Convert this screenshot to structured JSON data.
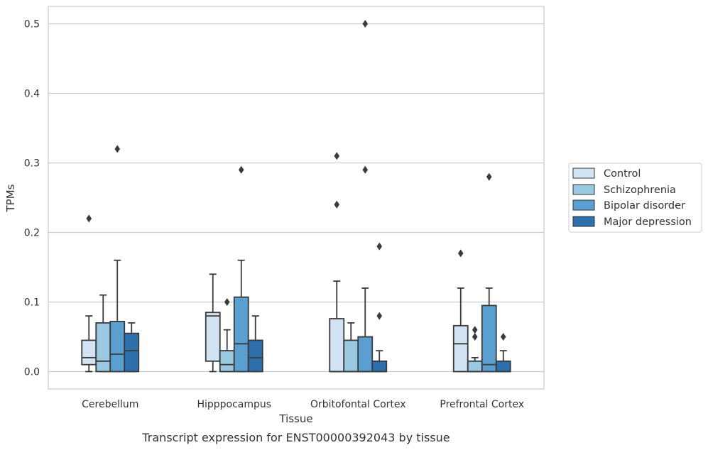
{
  "chart_data": {
    "type": "box",
    "caption": "Transcript expression for ENST00000392043 by tissue",
    "xlabel": "Tissue",
    "ylabel": "TPMs",
    "ylim": [
      -0.025,
      0.525
    ],
    "yticks": [
      0.0,
      0.1,
      0.2,
      0.3,
      0.4,
      0.5
    ],
    "ytick_labels": [
      "0.0",
      "0.1",
      "0.2",
      "0.3",
      "0.4",
      "0.5"
    ],
    "grid": "horizontal",
    "legend_position": "right",
    "categories": [
      "Cerebellum",
      "Hipppocampus",
      "Orbitofontal Cortex",
      "Prefrontal Cortex"
    ],
    "series": [
      {
        "name": "Control",
        "color": "#d2e3f3",
        "boxes": [
          {
            "whislo": 0.0,
            "q1": 0.01,
            "med": 0.02,
            "q3": 0.045,
            "whishi": 0.08,
            "fliers": [
              0.22
            ]
          },
          {
            "whislo": 0.0,
            "q1": 0.015,
            "med": 0.08,
            "q3": 0.085,
            "whishi": 0.14,
            "fliers": []
          },
          {
            "whislo": 0.0,
            "q1": 0.0,
            "med": 0.0,
            "q3": 0.076,
            "whishi": 0.13,
            "fliers": [
              0.24,
              0.31
            ]
          },
          {
            "whislo": 0.0,
            "q1": 0.0,
            "med": 0.04,
            "q3": 0.066,
            "whishi": 0.12,
            "fliers": [
              0.17
            ]
          }
        ]
      },
      {
        "name": "Schizophrenia",
        "color": "#9ac8e0",
        "boxes": [
          {
            "whislo": 0.0,
            "q1": 0.0,
            "med": 0.015,
            "q3": 0.07,
            "whishi": 0.11,
            "fliers": []
          },
          {
            "whislo": 0.0,
            "q1": 0.0,
            "med": 0.01,
            "q3": 0.03,
            "whishi": 0.06,
            "fliers": [
              0.1
            ]
          },
          {
            "whislo": 0.0,
            "q1": 0.0,
            "med": 0.0,
            "q3": 0.045,
            "whishi": 0.07,
            "fliers": []
          },
          {
            "whislo": 0.0,
            "q1": 0.0,
            "med": 0.0,
            "q3": 0.015,
            "whishi": 0.02,
            "fliers": [
              0.05,
              0.06
            ]
          }
        ]
      },
      {
        "name": "Bipolar disorder",
        "color": "#5a9fcf",
        "boxes": [
          {
            "whislo": 0.0,
            "q1": 0.0,
            "med": 0.025,
            "q3": 0.072,
            "whishi": 0.16,
            "fliers": [
              0.32
            ]
          },
          {
            "whislo": 0.0,
            "q1": 0.0,
            "med": 0.04,
            "q3": 0.107,
            "whishi": 0.16,
            "fliers": [
              0.29
            ]
          },
          {
            "whislo": 0.0,
            "q1": 0.0,
            "med": 0.0,
            "q3": 0.05,
            "whishi": 0.12,
            "fliers": [
              0.29,
              0.5
            ]
          },
          {
            "whislo": 0.0,
            "q1": 0.0,
            "med": 0.01,
            "q3": 0.095,
            "whishi": 0.12,
            "fliers": [
              0.28
            ]
          }
        ]
      },
      {
        "name": "Major depression",
        "color": "#2d6fad",
        "boxes": [
          {
            "whislo": 0.0,
            "q1": 0.0,
            "med": 0.03,
            "q3": 0.055,
            "whishi": 0.07,
            "fliers": []
          },
          {
            "whislo": 0.0,
            "q1": 0.0,
            "med": 0.02,
            "q3": 0.045,
            "whishi": 0.08,
            "fliers": []
          },
          {
            "whislo": 0.0,
            "q1": 0.0,
            "med": 0.0,
            "q3": 0.015,
            "whishi": 0.03,
            "fliers": [
              0.08,
              0.18
            ]
          },
          {
            "whislo": 0.0,
            "q1": 0.0,
            "med": 0.0,
            "q3": 0.015,
            "whishi": 0.03,
            "fliers": [
              0.05
            ]
          }
        ]
      }
    ]
  }
}
